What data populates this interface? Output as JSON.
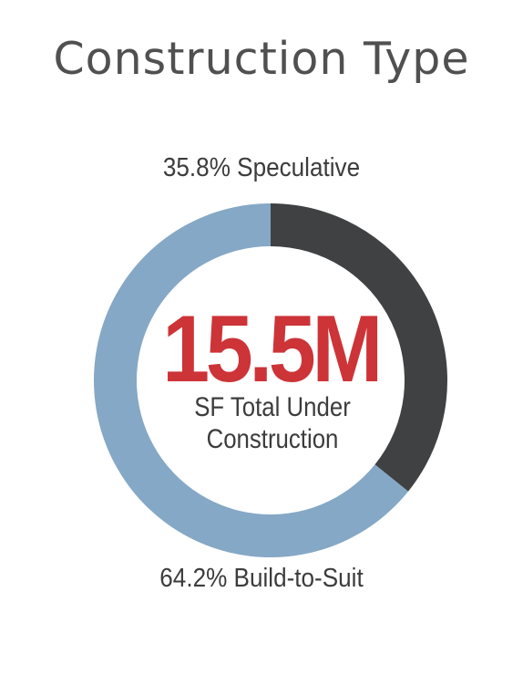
{
  "title": "Construction Type",
  "chart_data": {
    "type": "pie",
    "style": "donut",
    "slices": [
      {
        "label": "Speculative",
        "value": 35.8,
        "display": "35.8% Speculative",
        "color": "#404142"
      },
      {
        "label": "Build-to-Suit",
        "value": 64.2,
        "display": "64.2% Build-to-Suit",
        "color": "#85a8c6"
      }
    ],
    "center_value": "15.5M",
    "center_value_color": "#cc3438",
    "center_caption": [
      "SF Total Under",
      "Construction"
    ]
  }
}
